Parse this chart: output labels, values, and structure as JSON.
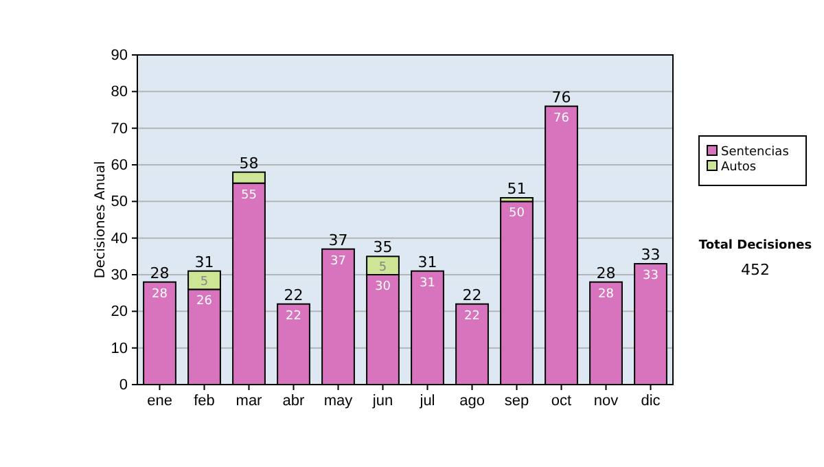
{
  "chart_data": {
    "type": "bar",
    "stacked": true,
    "ylabel": "Decisiones Anual",
    "categories": [
      "ene",
      "feb",
      "mar",
      "abr",
      "may",
      "jun",
      "jul",
      "ago",
      "sep",
      "oct",
      "nov",
      "dic"
    ],
    "series": [
      {
        "name": "Sentencias",
        "color": "#d874bd",
        "values": [
          28,
          26,
          55,
          22,
          37,
          30,
          31,
          22,
          50,
          76,
          28,
          33
        ],
        "value_labels": [
          "28",
          "26",
          "55",
          "22",
          "37",
          "30",
          "31",
          "22",
          "50",
          "76",
          "28",
          "33"
        ]
      },
      {
        "name": "Autos",
        "color": "#cde595",
        "values": [
          0,
          5,
          3,
          0,
          0,
          5,
          0,
          0,
          1,
          0,
          0,
          0
        ],
        "value_labels": [
          null,
          "5",
          null,
          null,
          null,
          "5",
          null,
          null,
          null,
          null,
          null,
          null
        ]
      }
    ],
    "totals": [
      "28",
      "31",
      "58",
      "22",
      "37",
      "35",
      "31",
      "22",
      "51",
      "76",
      "28",
      "33"
    ],
    "ylim": [
      0,
      90
    ],
    "yticks": [
      0,
      10,
      20,
      30,
      40,
      50,
      60,
      70,
      80,
      90
    ],
    "grid": "y",
    "legend": "right",
    "annotations": [
      "Total Decisiones",
      "452"
    ]
  }
}
